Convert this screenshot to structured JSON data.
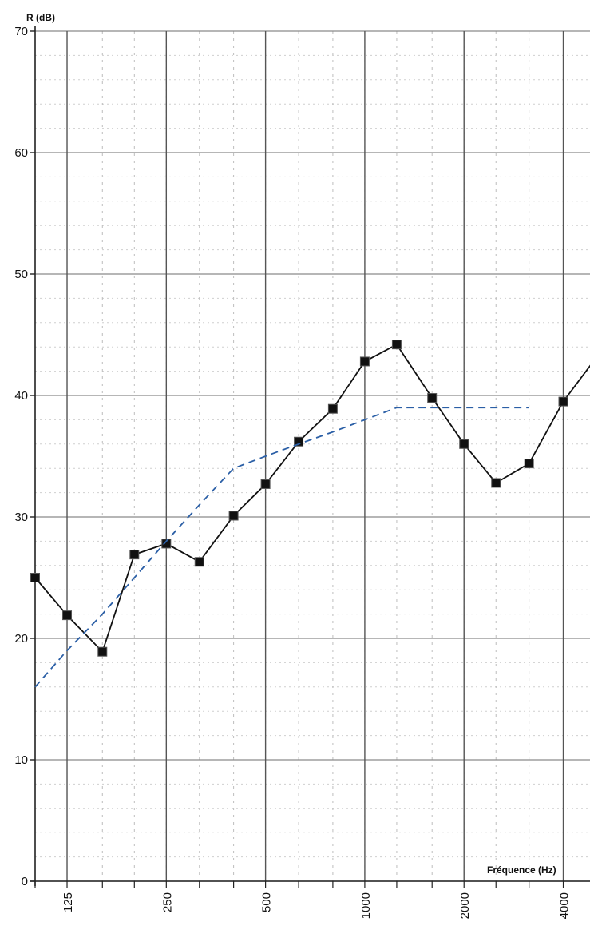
{
  "chart_data": {
    "type": "line",
    "title": "",
    "xlabel": "Fréquence (Hz)",
    "ylabel": "R (dB)",
    "x_scale": "log",
    "ylim": [
      0,
      70
    ],
    "yticks": [
      0,
      10,
      20,
      30,
      40,
      50,
      60,
      70
    ],
    "xticks": [
      125,
      250,
      500,
      1000,
      2000,
      4000
    ],
    "x": [
      100,
      125,
      160,
      200,
      250,
      315,
      400,
      500,
      630,
      800,
      1000,
      1250,
      1600,
      2000,
      2500,
      3150,
      4000,
      5000
    ],
    "grid": true,
    "series": [
      {
        "style": "solid-markers",
        "color": "#111111",
        "values": [
          25.0,
          21.9,
          18.9,
          26.9,
          27.8,
          26.3,
          30.1,
          32.7,
          36.2,
          38.9,
          42.8,
          44.2,
          39.8,
          36.0,
          32.8,
          34.4,
          39.5,
          43.0
        ]
      },
      {
        "style": "dashed",
        "color": "#2b5fa6",
        "x": [
          100,
          125,
          160,
          200,
          250,
          315,
          400,
          500,
          630,
          800,
          1000,
          1250,
          1600,
          2000,
          2500,
          3150
        ],
        "values": [
          16,
          19,
          22,
          25,
          28,
          31,
          34,
          35,
          36,
          37,
          38,
          39,
          39,
          39,
          39,
          39
        ]
      }
    ]
  }
}
